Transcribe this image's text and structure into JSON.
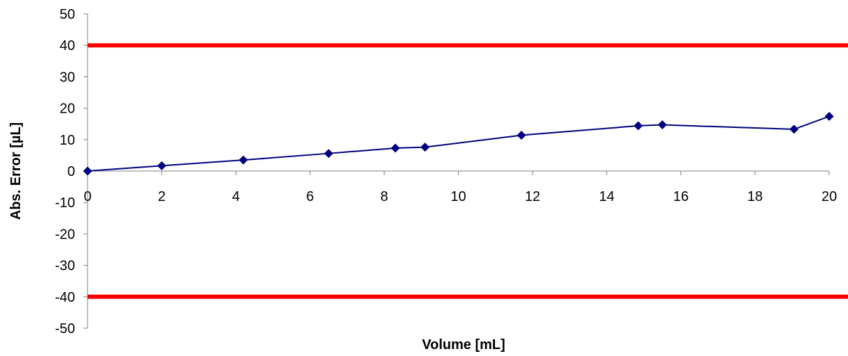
{
  "chart_data": {
    "type": "line",
    "title": "",
    "xlabel": "Volume [mL]",
    "ylabel": "Abs. Error [µL]",
    "xlim": [
      0,
      20
    ],
    "ylim": [
      -50,
      50
    ],
    "x_ticks": [
      0,
      2,
      4,
      6,
      8,
      10,
      12,
      14,
      16,
      18,
      20
    ],
    "y_ticks": [
      50,
      40,
      30,
      20,
      10,
      0,
      -10,
      -20,
      -30,
      -40,
      -50
    ],
    "grid": false,
    "legend": "none",
    "series": [
      {
        "color": "#000080",
        "marker": "diamond",
        "points": [
          {
            "x": 0,
            "y": 0
          },
          {
            "x": 2.0,
            "y": 1.7
          },
          {
            "x": 4.2,
            "y": 3.5
          },
          {
            "x": 6.5,
            "y": 5.6
          },
          {
            "x": 8.3,
            "y": 7.3
          },
          {
            "x": 9.1,
            "y": 7.6
          },
          {
            "x": 11.7,
            "y": 11.4
          },
          {
            "x": 14.85,
            "y": 14.4
          },
          {
            "x": 15.5,
            "y": 14.7
          },
          {
            "x": 19.05,
            "y": 13.3
          },
          {
            "x": 20,
            "y": 17.4
          }
        ]
      }
    ],
    "limit_lines": [
      {
        "y": 40,
        "color": "#ff0000"
      },
      {
        "y": -40,
        "color": "#ff0000"
      }
    ]
  }
}
